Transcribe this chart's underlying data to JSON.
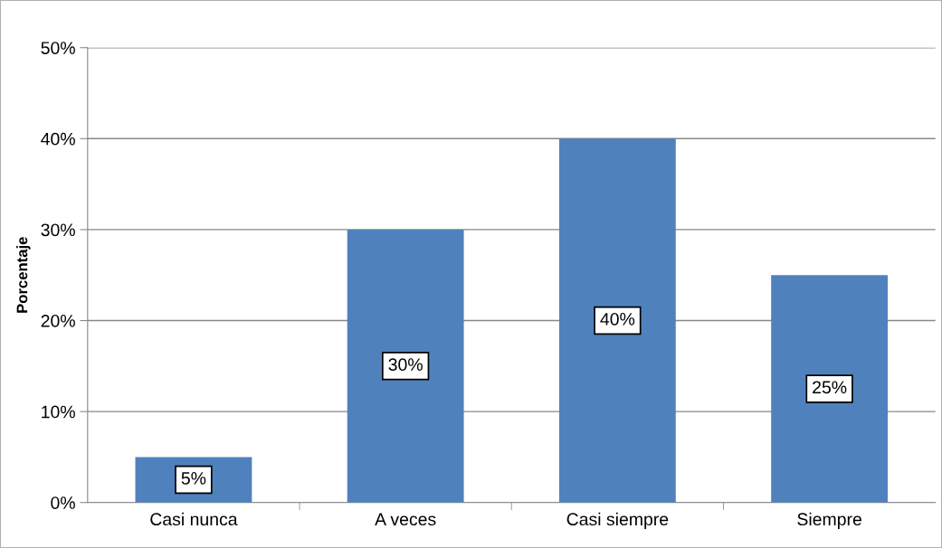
{
  "chart_data": {
    "type": "bar",
    "ylabel": "Porcentaje",
    "categories": [
      "Casi nunca",
      "A veces",
      "Casi siempre",
      "Siempre"
    ],
    "values": [
      5,
      30,
      40,
      25
    ],
    "value_labels": [
      "5%",
      "30%",
      "40%",
      "25%"
    ],
    "color": "#4f81bd",
    "ylim": [
      0,
      50
    ],
    "yticks": [
      {
        "value": 0,
        "label": "0%"
      },
      {
        "value": 10,
        "label": "10%"
      },
      {
        "value": 20,
        "label": "20%"
      },
      {
        "value": 30,
        "label": "30%"
      },
      {
        "value": 40,
        "label": "40%"
      },
      {
        "value": 50,
        "label": "50%"
      }
    ],
    "grid": "y",
    "legend": false
  }
}
